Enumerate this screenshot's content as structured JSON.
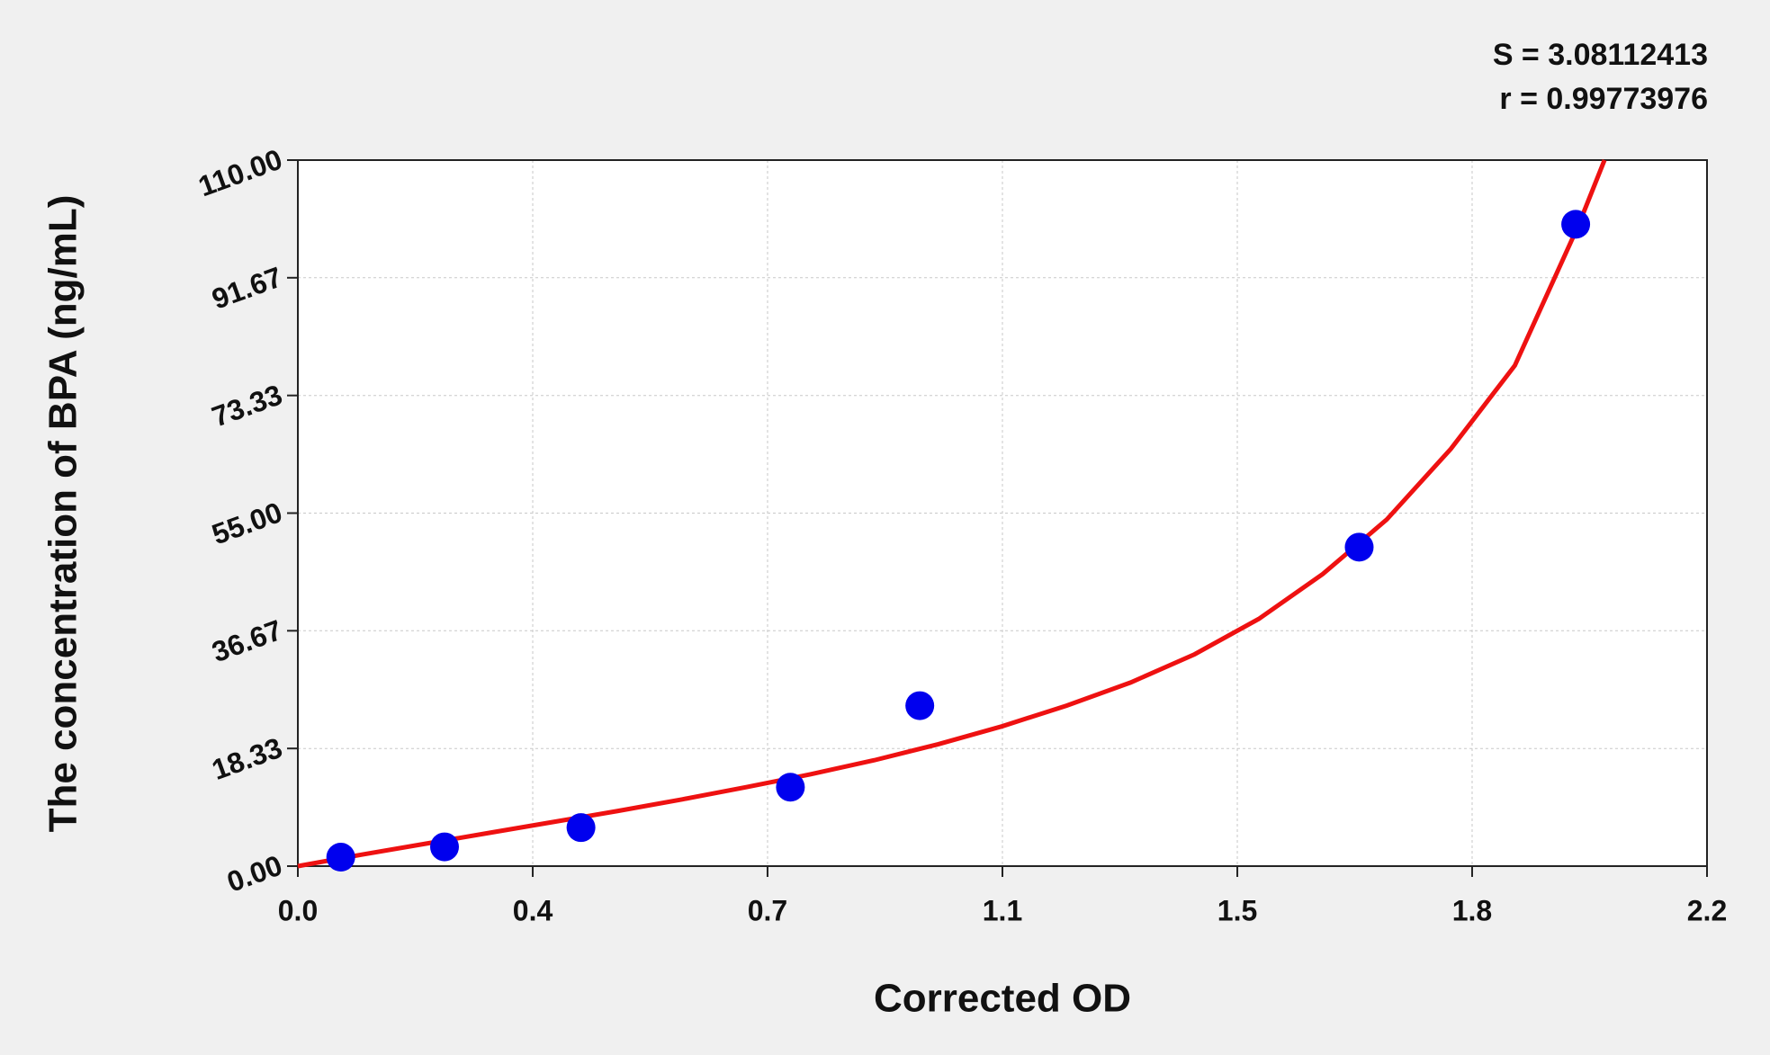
{
  "chart_data": {
    "type": "scatter",
    "x_label": "Corrected OD",
    "y_label": "The concentration of BPA (ng/mL)",
    "annotations": [
      "S = 3.08112413",
      "r = 0.99773976"
    ],
    "xlim": [
      0,
      2.2
    ],
    "xticks": [
      {
        "value": 0,
        "label": "0.0"
      },
      {
        "value": 0.3667,
        "label": "0.4"
      },
      {
        "value": 0.7333,
        "label": "0.7"
      },
      {
        "value": 1.1,
        "label": "1.1"
      },
      {
        "value": 1.4667,
        "label": "1.5"
      },
      {
        "value": 1.8333,
        "label": "1.8"
      },
      {
        "value": 2.2,
        "label": "2.2"
      }
    ],
    "ylim": [
      0,
      110
    ],
    "yticks": [
      {
        "value": 0,
        "label": "0.00"
      },
      {
        "value": 18.33,
        "label": "18.33"
      },
      {
        "value": 36.67,
        "label": "36.67"
      },
      {
        "value": 55,
        "label": "55.00"
      },
      {
        "value": 73.33,
        "label": "73.33"
      },
      {
        "value": 91.67,
        "label": "91.67"
      },
      {
        "value": 110,
        "label": "110.00"
      }
    ],
    "grid": true,
    "series": [
      {
        "type": "scatter",
        "color": "#0000ee",
        "x": [
          0.067,
          0.229,
          0.442,
          0.769,
          0.971,
          1.657,
          1.995
        ],
        "values": [
          1.4,
          3.0,
          6.0,
          12.3,
          25.0,
          49.7,
          100
        ]
      },
      {
        "type": "line",
        "color": "#ee1111",
        "x": [
          0,
          0.1,
          0.2,
          0.3,
          0.4,
          0.5,
          0.6,
          0.7,
          0.8,
          0.9,
          1.0,
          1.1,
          1.2,
          1.3,
          1.4,
          1.5,
          1.6,
          1.7,
          1.8,
          1.9,
          2.0,
          2.04
        ],
        "values": [
          0,
          1.8,
          3.5,
          5.2,
          6.9,
          8.6,
          10.4,
          12.3,
          14.3,
          16.5,
          19,
          21.8,
          25,
          28.6,
          33,
          38.5,
          45.5,
          54,
          65,
          78,
          100,
          110
        ]
      }
    ]
  }
}
